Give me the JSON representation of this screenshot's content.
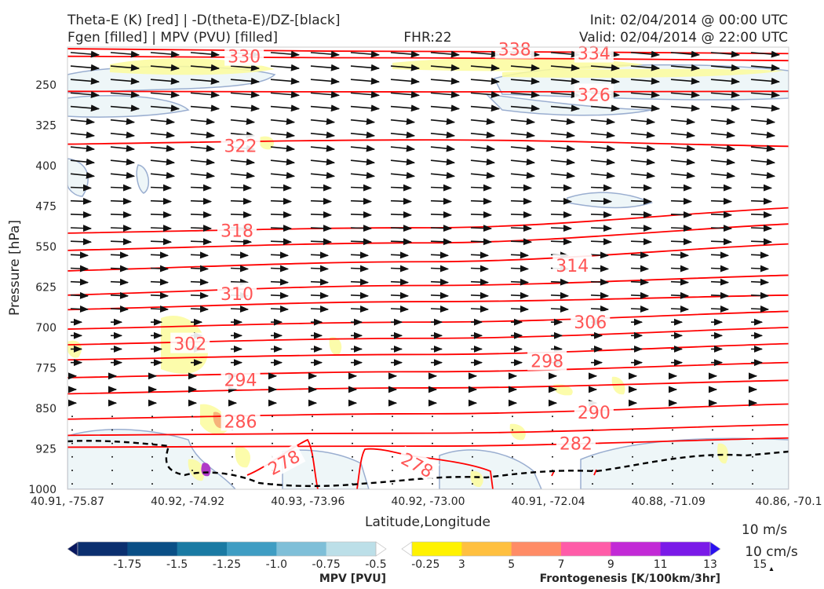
{
  "header": {
    "left_line1": "Theta-E (K) [red] | -D(theta-E)/DZ-[black]",
    "left_line2": "Fgen [filled] | MPV (PVU) [filled]",
    "center": "FHR:22",
    "right_line1": "Init: 02/04/2014 @ 00:00 UTC",
    "right_line2": "Valid: 02/04/2014 @ 22:00 UTC"
  },
  "chart_data": {
    "type": "cross-section",
    "title": "Theta-E (K) [red] | -D(theta-E)/DZ-[black]",
    "xlabel": "Latitude,Longitude",
    "ylabel": "Pressure [hPa]",
    "x_tick_labels": [
      "40.91, -75.87",
      "40.92, -74.92",
      "40.93, -73.96",
      "40.92, -73.00",
      "40.91, -72.04",
      "40.88, -71.09",
      "40.86, -70.1"
    ],
    "y_ticks": [
      250,
      325,
      400,
      475,
      550,
      625,
      700,
      775,
      850,
      925,
      1000
    ],
    "y_range": [
      180,
      1000
    ],
    "theta_e_labels": [
      {
        "text": "330",
        "x": 0.245,
        "p": 197
      },
      {
        "text": "338",
        "x": 0.62,
        "p": 184
      },
      {
        "text": "334",
        "x": 0.73,
        "p": 191
      },
      {
        "text": "326",
        "x": 0.73,
        "p": 268
      },
      {
        "text": "322",
        "x": 0.24,
        "p": 363
      },
      {
        "text": "318",
        "x": 0.235,
        "p": 520
      },
      {
        "text": "314",
        "x": 0.7,
        "p": 585
      },
      {
        "text": "310",
        "x": 0.235,
        "p": 637
      },
      {
        "text": "306",
        "x": 0.725,
        "p": 690
      },
      {
        "text": "302",
        "x": 0.17,
        "p": 730
      },
      {
        "text": "298",
        "x": 0.665,
        "p": 762
      },
      {
        "text": "294",
        "x": 0.24,
        "p": 797
      },
      {
        "text": "290",
        "x": 0.73,
        "p": 857
      },
      {
        "text": "286",
        "x": 0.24,
        "p": 874
      },
      {
        "text": "282",
        "x": 0.705,
        "p": 915
      },
      {
        "text": "278",
        "x": 0.3,
        "p": 950
      },
      {
        "text": "278",
        "x": 0.485,
        "p": 955
      }
    ],
    "theta_e_levels": [
      {
        "p_left": 183,
        "p_mid": 188,
        "p_right": 192
      },
      {
        "p_left": 197,
        "p_mid": 200,
        "p_right": 205
      },
      {
        "p_left": 262,
        "p_mid": 263,
        "p_right": 262
      },
      {
        "p_left": 360,
        "p_mid": 352,
        "p_right": 364
      },
      {
        "p_left": 525,
        "p_mid": 515,
        "p_right": 478
      },
      {
        "p_left": 557,
        "p_mid": 543,
        "p_right": 508
      },
      {
        "p_left": 595,
        "p_mid": 578,
        "p_right": 545
      },
      {
        "p_left": 640,
        "p_mid": 622,
        "p_right": 603
      },
      {
        "p_left": 667,
        "p_mid": 652,
        "p_right": 640
      },
      {
        "p_left": 703,
        "p_mid": 690,
        "p_right": 670
      },
      {
        "p_left": 732,
        "p_mid": 720,
        "p_right": 700
      },
      {
        "p_left": 760,
        "p_mid": 750,
        "p_right": 730
      },
      {
        "p_left": 793,
        "p_mid": 782,
        "p_right": 765
      },
      {
        "p_left": 823,
        "p_mid": 812,
        "p_right": 798
      },
      {
        "p_left": 870,
        "p_mid": 860,
        "p_right": 842
      },
      {
        "p_left": 900,
        "p_mid": 896,
        "p_right": 880
      },
      {
        "p_left": 922,
        "p_mid": 920,
        "p_right": 905
      }
    ],
    "mpv_colorbar": {
      "title": "MPV [PVU]",
      "ticks": [
        "-1.75",
        "-1.5",
        "-1.25",
        "-1.0",
        "-0.75",
        "-0.5",
        "-0.25"
      ],
      "colors": [
        "#08175e",
        "#0b2f6f",
        "#0a4f86",
        "#1a7aa3",
        "#3f9dc3",
        "#7fbfd8",
        "#bcdfe8",
        "#ffffff"
      ]
    },
    "fgen_colorbar": {
      "title": "Frontogenesis [K/100km/3hr]",
      "ticks": [
        "3",
        "5",
        "7",
        "9",
        "11",
        "13",
        "15"
      ],
      "colors": [
        "#ffffff",
        "#fff200",
        "#ffc040",
        "#ff8c66",
        "#ff5ca8",
        "#c22ad6",
        "#7a1ae8",
        "#2a10f0"
      ]
    },
    "vector_reference": {
      "horizontal": "10 m/s",
      "vertical": "10 cm/s"
    },
    "colors": {
      "theta_e": "#ff0000",
      "mpv_contour": "#9aaed0",
      "mpv_fill": "#eef6f8",
      "fgen_fill": "#fbfb9c",
      "arrows": "#111111"
    }
  }
}
